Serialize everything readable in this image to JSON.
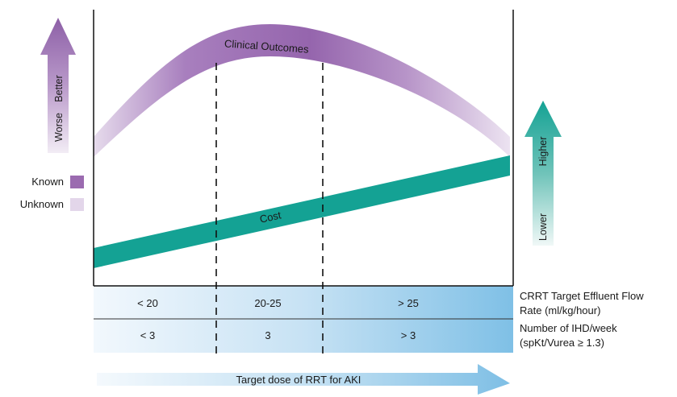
{
  "outcome_curve": {
    "label": "Clinical Outcomes"
  },
  "cost_band": {
    "label": "Cost"
  },
  "left_arrow": {
    "top_label": "Better",
    "bottom_label": "Worse"
  },
  "right_arrow": {
    "top_label": "Higher",
    "bottom_label": "Lower"
  },
  "legend": {
    "items": [
      {
        "label": "Known",
        "color": "#9b6bb0"
      },
      {
        "label": "Unknown",
        "color": "#e3d6ea"
      }
    ]
  },
  "table": {
    "rows": [
      {
        "cells": [
          "< 20",
          "20-25",
          "> 25"
        ],
        "caption": [
          "CRRT Target Effluent Flow",
          "Rate (ml/kg/hour)"
        ]
      },
      {
        "cells": [
          "< 3",
          "3",
          "> 3"
        ],
        "caption": [
          "Number of IHD/week",
          "(spKt/Vurea ≥ 1.3)"
        ]
      }
    ]
  },
  "bottom_arrow": {
    "label": "Target dose of RRT for AKI"
  },
  "colors": {
    "cost": "#14a294",
    "known": "#9b6bb0",
    "unknown": "#e3d6ea",
    "table_blue": "#7fc0e6"
  }
}
